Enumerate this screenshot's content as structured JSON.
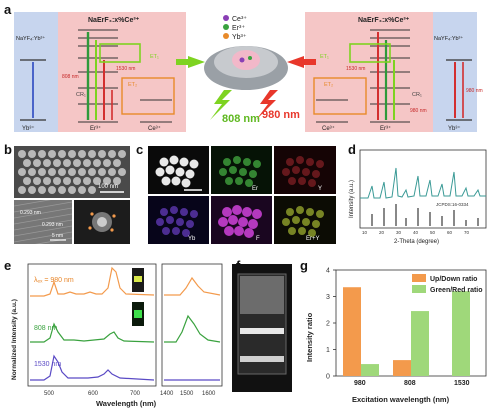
{
  "panel_a": {
    "letter": "a",
    "left_box": {
      "title": "NaErF₄:x%Ce³⁺",
      "shell": "NaYF₄:Yb³⁺",
      "ions": [
        "Yb³⁺",
        "Er³⁺",
        "Ce³⁺"
      ],
      "ct": [
        "CR₁",
        "ET₂",
        "ET₁"
      ],
      "emission": [
        "1530 nm",
        "808 nm"
      ]
    },
    "right_box": {
      "title": "NaErF₄:x%Ce³⁺",
      "shell": "NaYF₄:Yb³⁺",
      "ions": [
        "Ce³⁺",
        "Er³⁺",
        "Yb³⁺"
      ],
      "ct": [
        "ET₁",
        "ET₂",
        "CR₁"
      ],
      "emission": [
        "1530 nm",
        "980 nm",
        "980 nm"
      ]
    },
    "legend": [
      {
        "label": "Ce³⁺",
        "color": "#8a3fb5"
      },
      {
        "label": "Er³⁺",
        "color": "#3aa23f"
      },
      {
        "label": "Yb³⁺",
        "color": "#e88a2a"
      }
    ],
    "excitation_left": "808 nm",
    "excitation_right": "980 nm",
    "color_808": "#7ed321",
    "color_980": "#e8372b"
  },
  "panel_b": {
    "letter": "b",
    "scale_top": "100 nm",
    "scale_bottom": "5 nm",
    "lattice": [
      "0.293 nm",
      "0.293 nm"
    ]
  },
  "panel_c": {
    "letter": "c",
    "labels": [
      "Er",
      "Y",
      "Yb",
      "F",
      "Er+Y"
    ]
  },
  "panel_d": {
    "letter": "d",
    "ylabel": "Intensity (a.u.)",
    "xlabel": "2-Theta (degree)",
    "ref": "JCPDS:16-0334",
    "xticks": [
      "10",
      "20",
      "30",
      "40",
      "50",
      "60",
      "70"
    ]
  },
  "panel_e": {
    "letter": "e",
    "ylabel": "Normalized Intensity (a.u.)",
    "xlabel": "Wavelength (nm)",
    "traces": [
      "λₑₓ = 980 nm",
      "808 nm",
      "1530 nm"
    ],
    "xticks_left": [
      "500",
      "600",
      "700"
    ],
    "xticks_right": [
      "1400",
      "1500",
      "1600"
    ]
  },
  "panel_f": {
    "letter": "f"
  },
  "panel_g": {
    "letter": "g"
  },
  "chart_data": {
    "type": "bar",
    "categories": [
      "980",
      "808",
      "1530"
    ],
    "series": [
      {
        "name": "Up/Down ratio",
        "values": [
          3.35,
          0.6,
          null
        ],
        "color": "#f39a4c"
      },
      {
        "name": "Green/Red ratio",
        "values": [
          0.45,
          2.45,
          3.2
        ],
        "color": "#9fd87a"
      }
    ],
    "xlabel": "Excitation wavelength (nm)",
    "ylabel": "Intensity ratio",
    "ylim": [
      0,
      4
    ],
    "yticks": [
      "0",
      "1",
      "2",
      "3",
      "4"
    ],
    "legend": "top-right"
  }
}
